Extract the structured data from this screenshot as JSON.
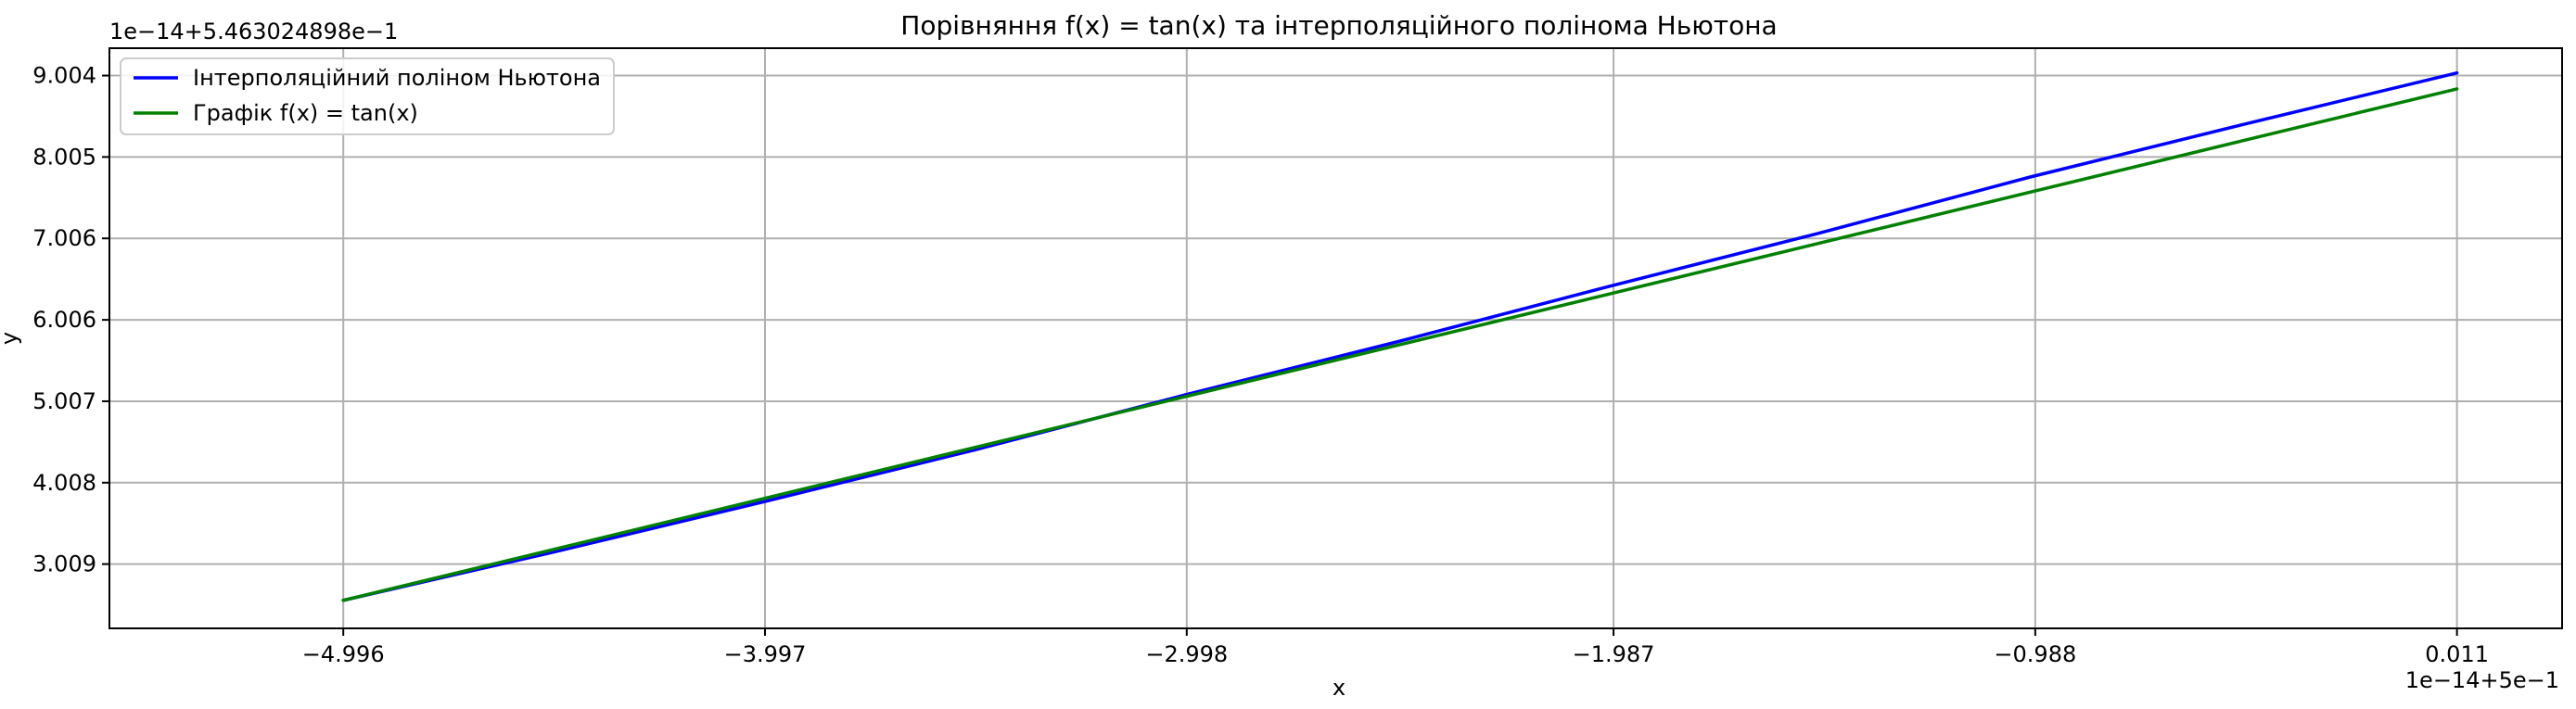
{
  "chart_data": {
    "type": "line",
    "title": "Порівняння f(x) = tan(x) та інтерполяційного полінома Ньютона",
    "xlabel": "x",
    "ylabel": "y",
    "x_offset_label": "1e−14+5e−1",
    "y_offset_label": "1e−14+5.463024898e−1",
    "x_ticks": [
      -4.996,
      -3.997,
      -2.998,
      -1.987,
      -0.988,
      0.011
    ],
    "x_tick_labels": [
      "−4.996",
      "−3.997",
      "−2.998",
      "−1.987",
      "−0.988",
      "0.011"
    ],
    "y_ticks": [
      3.009,
      4.008,
      5.007,
      6.006,
      7.006,
      8.005,
      9.004
    ],
    "y_tick_labels": [
      "3.009",
      "4.008",
      "5.007",
      "6.006",
      "7.006",
      "8.005",
      "9.004"
    ],
    "xlim": [
      -5.55,
      0.26
    ],
    "ylim": [
      2.22,
      9.34
    ],
    "grid": true,
    "legend_position": "top-left",
    "series": [
      {
        "name": "Інтерполяційний поліном Ньютона",
        "color": "#0000ff",
        "x": [
          -4.996,
          -4.5,
          -4.0,
          -3.5,
          -3.0,
          -2.5,
          -2.0,
          -1.5,
          -1.0,
          -0.5,
          0.011
        ],
        "y": [
          2.564,
          3.154,
          3.773,
          4.41,
          5.088,
          5.736,
          6.413,
          7.07,
          7.759,
          8.398,
          9.037
        ]
      },
      {
        "name": "Графік f(x) = tan(x)",
        "color": "#008000",
        "x": [
          -4.996,
          -4.5,
          -4.0,
          -3.5,
          -3.0,
          -2.5,
          -2.0,
          -1.5,
          -1.0,
          -0.5,
          0.011
        ],
        "y": [
          2.564,
          3.186,
          3.813,
          4.44,
          5.066,
          5.693,
          6.32,
          6.947,
          7.573,
          8.2,
          8.84
        ]
      }
    ]
  }
}
